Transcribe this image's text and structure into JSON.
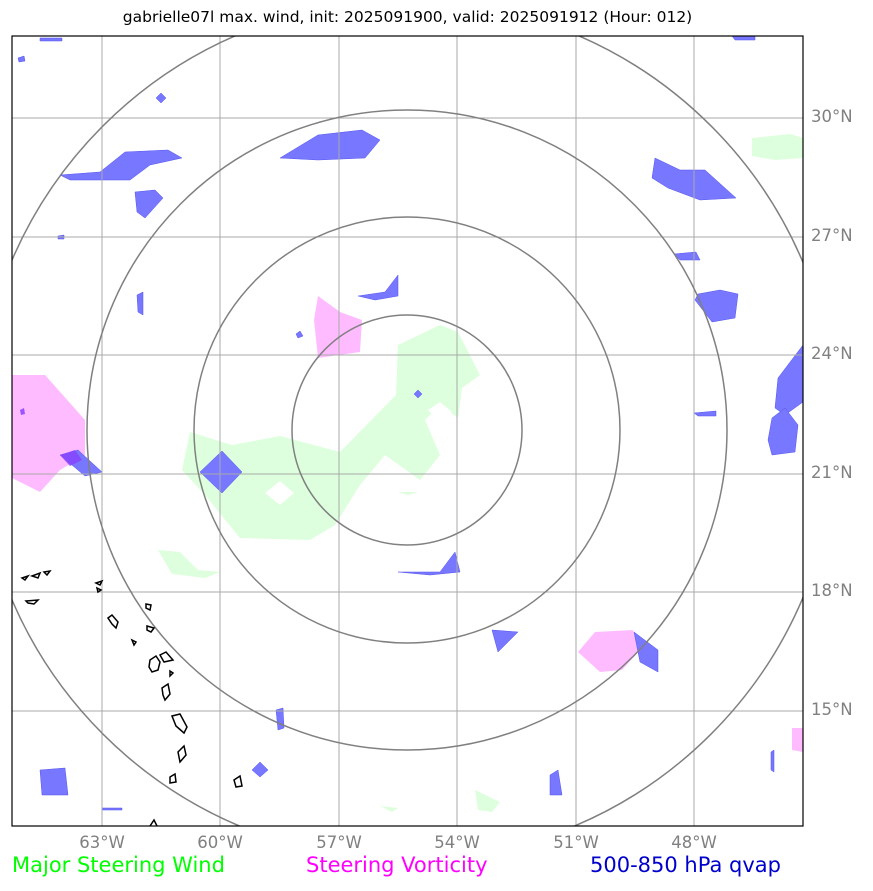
{
  "title": "gabrielle07l max. wind, init: 2025091900, valid: 2025091912 (Hour: 012)",
  "axes": {
    "lat_labels": [
      "30°N",
      "27°N",
      "24°N",
      "21°N",
      "18°N",
      "15°N"
    ],
    "lon_labels": [
      "63°W",
      "60°W",
      "57°W",
      "54°W",
      "51°W",
      "48°W"
    ]
  },
  "legend": {
    "wind": "Major Steering Wind",
    "vorticity": "Steering Vorticity",
    "qvap": "500-850 hPa qvap"
  },
  "colors": {
    "wind": "#00ff00",
    "vorticity": "#ff00ff",
    "qvap": "#0000cc",
    "wind_fill": "#ddffdd",
    "vorticity_fill": "#ffbbff",
    "qvap_fill": "#7777ff",
    "grid": "#a8a8a8",
    "rings": "#808080"
  }
}
